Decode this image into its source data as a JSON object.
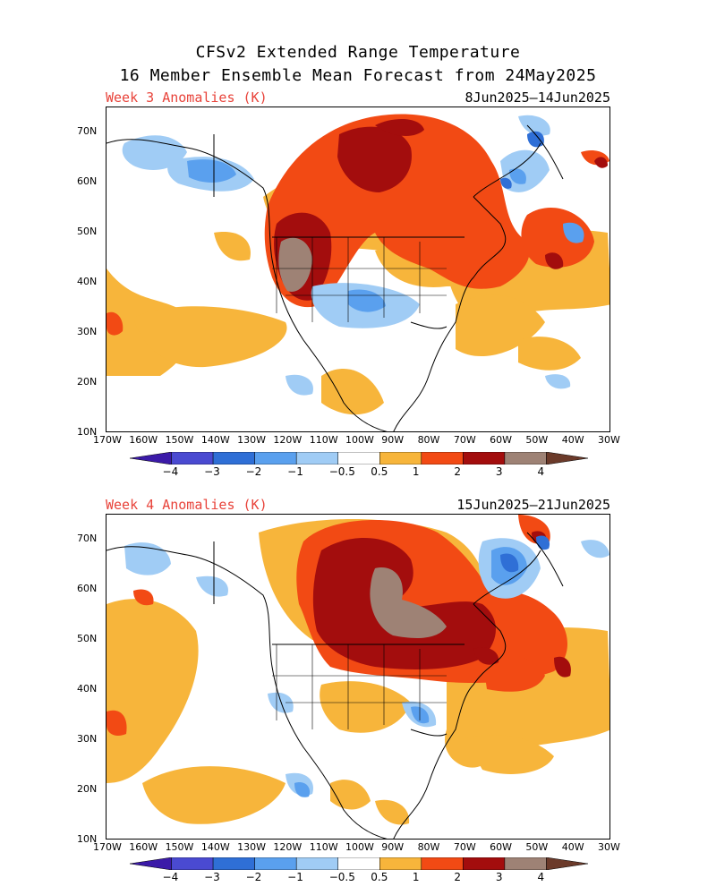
{
  "title_line1": "CFSv2 Extended Range Temperature",
  "title_line2": "16 Member Ensemble Mean Forecast from 24May2025",
  "panels": [
    {
      "label": "Week 3 Anomalies (K)",
      "dates": "8Jun2025–14Jun2025"
    },
    {
      "label": "Week 4 Anomalies (K)",
      "dates": "15Jun2025–21Jun2025"
    }
  ],
  "lat_labels": [
    "70N",
    "60N",
    "50N",
    "40N",
    "30N",
    "20N",
    "10N"
  ],
  "lon_labels": [
    "170W",
    "160W",
    "150W",
    "140W",
    "130W",
    "120W",
    "110W",
    "100W",
    "90W",
    "80W",
    "70W",
    "60W",
    "50W",
    "40W",
    "30W"
  ],
  "colorbar": {
    "labels": [
      "−4",
      "−3",
      "−2",
      "−1",
      "−0.5",
      "0.5",
      "1",
      "2",
      "3",
      "4"
    ],
    "colors": [
      "#3b1aa8",
      "#4a4ad1",
      "#2f6fd6",
      "#5aa0ee",
      "#a0ccf5",
      "#ffffff",
      "#f7b53b",
      "#f24a14",
      "#a30d0d",
      "#9e8275",
      "#6b3a2a"
    ]
  },
  "map_colors": {
    "light_orange": "#f7b53b",
    "red_orange": "#f24a14",
    "dark_red": "#a30d0d",
    "brown": "#9e8275",
    "light_blue": "#a0ccf5",
    "mid_blue": "#5aa0ee",
    "blue": "#2f6fd6",
    "dark_blue": "#3b1aa8"
  }
}
